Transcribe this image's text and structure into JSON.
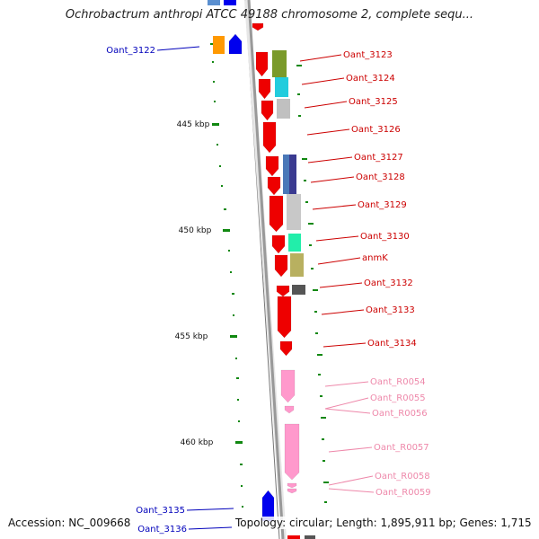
{
  "title": "Ochrobactrum anthropi ATCC 49188 chromosome 2, complete sequ...",
  "footer": {
    "accession": "Accession: NC_009668",
    "summary": "Topology: circular; Length: 1,895,911 bp; Genes: 1,715"
  },
  "colors": {
    "label_red": "#cc0000",
    "label_blue": "#0000bb",
    "label_pink": "#ee88aa",
    "backbone": "#a0a0a0",
    "gc_marks": "#118811"
  },
  "ticks": [
    "445 kbp",
    "450 kbp",
    "455 kbp",
    "460 kbp"
  ],
  "left_labels": [
    "Oant_3122",
    "Oant_3135",
    "Oant_3136"
  ],
  "right_labels": [
    "Oant_3123",
    "Oant_3124",
    "Oant_3125",
    "Oant_3126",
    "Oant_3127",
    "Oant_3128",
    "Oant_3129",
    "Oant_3130",
    "anmK",
    "Oant_3132",
    "Oant_3133",
    "Oant_3134"
  ],
  "rna_labels": [
    "Oant_R0054",
    "Oant_R0055",
    "Oant_R0056",
    "Oant_R0057",
    "Oant_R0058",
    "Oant_R0059"
  ]
}
